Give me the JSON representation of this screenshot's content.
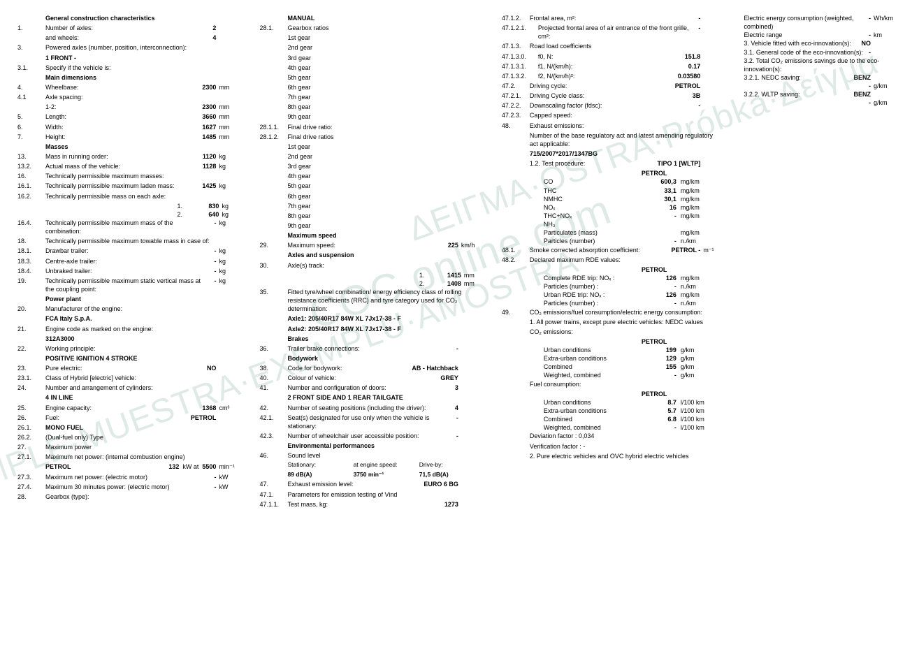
{
  "col1": {
    "h_general": "General construction characteristics",
    "r1": {
      "n": "1.",
      "l": "Number of axles:",
      "v": "2"
    },
    "r1b": {
      "l": "and wheels:",
      "v": "4"
    },
    "r3": {
      "n": "3.",
      "l": "Powered axles (number, position, interconnection):"
    },
    "r3v": "1 FRONT -",
    "r31": {
      "n": "3.1.",
      "l": "Specify if the vehicle is:"
    },
    "h_main": "Main dimensions",
    "r4": {
      "n": "4.",
      "l": "Wheelbase:",
      "v": "2300",
      "u": "mm"
    },
    "r41": {
      "n": "4.1",
      "l": "Axle spacing:"
    },
    "r41a": {
      "l": "1-2:",
      "v": "2300",
      "u": "mm"
    },
    "r5": {
      "n": "5.",
      "l": "Length:",
      "v": "3660",
      "u": "mm"
    },
    "r6": {
      "n": "6.",
      "l": "Width:",
      "v": "1627",
      "u": "mm"
    },
    "r7": {
      "n": "7.",
      "l": "Height:",
      "v": "1485",
      "u": "mm"
    },
    "h_masses": "Masses",
    "r13": {
      "n": "13.",
      "l": "Mass in running order:",
      "v": "1120",
      "u": "kg"
    },
    "r132": {
      "n": "13.2.",
      "l": "Actual mass of the vehicle:",
      "v": "1128",
      "u": "kg"
    },
    "r16": {
      "n": "16.",
      "l": "Technically permissible maximum masses:"
    },
    "r161": {
      "n": "16.1.",
      "l": "Technically permissible maximum laden mass:",
      "v": "1425",
      "u": "kg"
    },
    "r162": {
      "n": "16.2.",
      "l": "Technically permissible mass on each axle:"
    },
    "r162a": {
      "l": "1.",
      "v": "830",
      "u": "kg"
    },
    "r162b": {
      "l": "2.",
      "v": "640",
      "u": "kg"
    },
    "r164": {
      "n": "16.4.",
      "l": "Technically permissible maximum mass of the combination:",
      "v": "-",
      "u": "kg"
    },
    "r18": {
      "n": "18.",
      "l": "Technically permissible maximum towable mass in case of:"
    },
    "r181": {
      "n": "18.1.",
      "l": "Drawbar trailer:",
      "v": "-",
      "u": "kg"
    },
    "r183": {
      "n": "18.3.",
      "l": "Centre-axle trailer:",
      "v": "-",
      "u": "kg"
    },
    "r184": {
      "n": "18.4.",
      "l": "Unbraked trailer:",
      "v": "-",
      "u": "kg"
    },
    "r19": {
      "n": "19.",
      "l": "Technically permissible maximum static vertical mass at the coupling point:",
      "v": "-",
      "u": "kg"
    },
    "h_power": "Power plant",
    "r20": {
      "n": "20.",
      "l": "Manufacturer of the engine:"
    },
    "r20v": "FCA Italy S.p.A.",
    "r21": {
      "n": "21.",
      "l": "Engine code as marked on the engine:"
    },
    "r21v": "312A3000",
    "r22": {
      "n": "22.",
      "l": "Working principle:"
    },
    "r22v": "POSITIVE IGNITION 4 STROKE",
    "r23": {
      "n": "23.",
      "l": "Pure electric:",
      "v": "NO"
    },
    "r231": {
      "n": "23.1.",
      "l": "Class of Hybrid [electric] vehicle:"
    },
    "r24": {
      "n": "24.",
      "l": "Number and arrangement of cylinders:"
    },
    "r24v": "4 IN LINE",
    "r25": {
      "n": "25.",
      "l": "Engine capacity:",
      "v": "1368",
      "u": "cm³"
    },
    "r26": {
      "n": "26.",
      "l": "Fuel:",
      "v": "PETROL"
    },
    "r261": {
      "n": "26.1.",
      "l": "MONO FUEL"
    },
    "r262": {
      "n": "26.2.",
      "l": "(Dual-fuel only) Type"
    },
    "r27": {
      "n": "27.",
      "l": "Maximum power"
    },
    "r271": {
      "n": "27.1.",
      "l": "Maximum net power: (internal combustion engine)"
    },
    "r271v": {
      "fuel": "PETROL",
      "p": "132",
      "pu": "kW at",
      "r": "5500",
      "ru": "min⁻¹"
    },
    "r273": {
      "n": "27.3.",
      "l": "Maximum net power: (electric motor)",
      "v": "-",
      "u": "kW"
    },
    "r274": {
      "n": "27.4.",
      "l": "Maximum 30 minutes power: (electric motor)",
      "v": "-",
      "u": "kW"
    },
    "r28": {
      "n": "28.",
      "l": "Gearbox (type):"
    }
  },
  "col2": {
    "h_manual": "MANUAL",
    "r281": {
      "n": "28.1.",
      "l": "Gearbox ratios"
    },
    "g": [
      "1st gear",
      "2nd gear",
      "3rd gear",
      "4th gear",
      "5th gear",
      "6th gear",
      "7th gear",
      "8th gear",
      "9th gear"
    ],
    "r2811": {
      "n": "28.1.1.",
      "l": "Final drive ratio:"
    },
    "r2812": {
      "n": "28.1.2.",
      "l": "Final drive ratios"
    },
    "h_maxspeed": "Maximum speed",
    "r29": {
      "n": "29.",
      "l": "Maximum speed:",
      "v": "225",
      "u": "km/h"
    },
    "h_axles": "Axles and suspension",
    "r30": {
      "n": "30.",
      "l": "Axle(s) track:"
    },
    "r30a": {
      "l": "1.",
      "v": "1415",
      "u": "mm"
    },
    "r30b": {
      "l": "2.",
      "v": "1408",
      "u": "mm"
    },
    "r35": {
      "n": "35.",
      "l": "Fitted tyre/wheel combination/ energy efficiency class of rolling resistance coefficients (RRC) and tyre category used for CO₂ determination:"
    },
    "r35a": "Axle1: 205/40R17 84W XL 7Jx17-38 - F",
    "r35b": "Axle2: 205/40R17 84W XL 7Jx17-38 - F",
    "h_brakes": "Brakes",
    "r36": {
      "n": "36.",
      "l": "Trailer brake connections:",
      "v": "-"
    },
    "h_body": "Bodywork",
    "r38": {
      "n": "38.",
      "l": "Code for bodywork:",
      "v": "AB - Hatchback"
    },
    "r40": {
      "n": "40.",
      "l": "Colour of vehicle:",
      "v": "GREY"
    },
    "r41": {
      "n": "41.",
      "l": "Number and configuration of doors:",
      "v": "3"
    },
    "r41v": "2 FRONT SIDE AND 1 REAR TAILGATE",
    "r42": {
      "n": "42.",
      "l": "Number of seating positions (including the driver):",
      "v": "4"
    },
    "r421": {
      "n": "42.1.",
      "l": "Seat(s) designated for use only when the vehicle is stationary:",
      "v": "-"
    },
    "r423": {
      "n": "42.3.",
      "l": "Number of wheelchair user accessible position:",
      "v": "-"
    },
    "h_env": "Environmental performances",
    "r46": {
      "n": "46.",
      "l": "Sound level"
    },
    "r46h": {
      "a": "Stationary:",
      "b": "at engine speed:",
      "c": "Drive-by:"
    },
    "r46v": {
      "a": "89 dB(A)",
      "b": "3750 min⁻¹",
      "c": "71,5 dB(A)"
    },
    "r47": {
      "n": "47.",
      "l": "Exhaust emission level:",
      "v": "EURO 6 BG"
    },
    "r471": {
      "n": "47.1.",
      "l": "Parameters for emission testing of Vind"
    },
    "r4711": {
      "n": "47.1.1.",
      "l": "Test mass, kg:",
      "v": "1273"
    }
  },
  "col3": {
    "r4712": {
      "n": "47.1.2.",
      "l": "Frontal area, m²:",
      "v": "-"
    },
    "r47121": {
      "n": "47.1.2.1.",
      "l": "Projected frontal area of air entrance of the front grille, cm²:",
      "v": "-"
    },
    "r4713": {
      "n": "47.1.3.",
      "l": "Road load coefficients"
    },
    "r47130": {
      "n": "47.1.3.0.",
      "l": "f0, N:",
      "v": "151.8"
    },
    "r47131": {
      "n": "47.1.3.1.",
      "l": "f1, N/(km/h):",
      "v": "0.17"
    },
    "r47132": {
      "n": "47.1.3.2.",
      "l": "f2, N/(km/h)²:",
      "v": "0.03580"
    },
    "r472": {
      "n": "47.2.",
      "l": "Driving cycle:",
      "v": "PETROL"
    },
    "r4721": {
      "n": "47.2.1.",
      "l": "Driving Cycle class:",
      "v": "3B"
    },
    "r4722": {
      "n": "47.2.2.",
      "l": "Downscaling factor (fdsc):",
      "v": "-"
    },
    "r4723": {
      "n": "47.2.3.",
      "l": "Capped speed:"
    },
    "r48": {
      "n": "48.",
      "l": "Exhaust emissions:"
    },
    "r48a": "Number of the base regulatory act and latest amending regulatory act applicable:",
    "r48b": "715/2007*2017/1347BG",
    "r48c": {
      "l": "1.2. Test procedure:",
      "v": "TIPO 1 [WLTP]"
    },
    "petrol": "PETROL",
    "em": [
      {
        "n": "CO",
        "v": "600,3",
        "u": "mg/km"
      },
      {
        "n": "THC",
        "v": "33,1",
        "u": "mg/km"
      },
      {
        "n": "NMHC",
        "v": "30,1",
        "u": "mg/km"
      },
      {
        "n": "NOₓ",
        "v": "16",
        "u": "mg/km"
      },
      {
        "n": "THC+NOₓ",
        "v": "-",
        "u": "mg/km"
      },
      {
        "n": "NH₃",
        "v": "",
        "u": ""
      },
      {
        "n": "Particulates (mass)",
        "v": "",
        "u": "mg/km"
      },
      {
        "n": "Particles (number)",
        "v": "-",
        "u": "n./km"
      }
    ],
    "r481": {
      "n": "48.1.",
      "l": "Smoke corrected absorption coefficient:",
      "v": "PETROL  -",
      "u": "m⁻¹"
    },
    "r482": {
      "n": "48.2.",
      "l": "Declared maximum RDE values:"
    },
    "rde": [
      {
        "n": "Complete RDE trip: NOₓ :",
        "v": "126",
        "u": "mg/km"
      },
      {
        "n": "Particles (number) :",
        "v": "-",
        "u": "n./km"
      },
      {
        "n": "Urban RDE trip: NOₓ :",
        "v": "126",
        "u": "mg/km"
      },
      {
        "n": "Particles (number) :",
        "v": "-",
        "u": "n./km"
      }
    ],
    "r49": {
      "n": "49.",
      "l": "CO₂ emissions/fuel consumption/electric energy consumption:"
    },
    "r49a": "1. All power trains, except pure electric vehicles: NEDC values",
    "r49b": "CO₂ emissions:",
    "co2": [
      {
        "n": "Urban conditions",
        "v": "199",
        "u": "g/km"
      },
      {
        "n": "Extra-urban conditions",
        "v": "129",
        "u": "g/km"
      },
      {
        "n": "Combined",
        "v": "155",
        "u": "g/km"
      },
      {
        "n": "Weighted, combined",
        "v": "-",
        "u": "g/km"
      }
    ],
    "r49c": "Fuel consumption:",
    "fc": [
      {
        "n": "Urban conditions",
        "v": "8.7",
        "u": "l/100 km"
      },
      {
        "n": "Extra-urban conditions",
        "v": "5.7",
        "u": "l/100 km"
      },
      {
        "n": "Combined",
        "v": "6.8",
        "u": "l/100 km"
      },
      {
        "n": "Weighted, combined",
        "v": "-",
        "u": "l/100 km"
      }
    ],
    "dev": "Deviation factor : 0,034",
    "ver": "Verification factor : -",
    "r49d": "2. Pure electric vehicles and OVC hybrid electric vehicles"
  },
  "col4": {
    "r1": {
      "l": "Electric energy consumption (weighted, combined)",
      "v": "-",
      "u": "Wh/km"
    },
    "r2": {
      "l": "Electric range",
      "v": "-",
      "u": "km"
    },
    "r3": {
      "l": "3. Vehicle fitted with eco-innovation(s):",
      "v": "NO"
    },
    "r31": {
      "l": "3.1. General code of the eco-innovation(s):",
      "v": "-"
    },
    "r32": {
      "l": "3.2. Total CO₂ emissions savings due to the eco-innovation(s):"
    },
    "r321": {
      "l": "3.2.1. NEDC saving:",
      "v": "BENZ",
      "v2": "-",
      "u": "g/km"
    },
    "r322": {
      "l": "3.2.2. WLTP saving:",
      "v": "BENZ",
      "v2": "-",
      "u": "g/km"
    }
  },
  "wm": "COC.online.com",
  "wm2": "ΔΕΙΓΜΑ·OSTRA·Próbka·Δείγμα",
  "wm3": "SAMPLE·MUESTRA·EXEMPLU·AMOSTRA"
}
